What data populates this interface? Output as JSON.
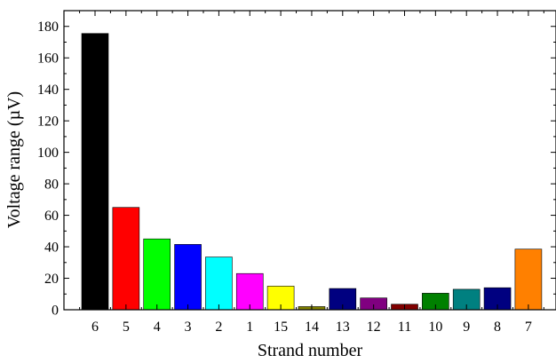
{
  "chart_data": {
    "type": "bar",
    "title": "",
    "xlabel": "Strand number",
    "ylabel": "Voltage range (µV)",
    "ylim": [
      0,
      190
    ],
    "yticks": [
      0,
      20,
      40,
      60,
      80,
      100,
      120,
      140,
      160,
      180
    ],
    "grid": false,
    "legend": "none",
    "categories": [
      "6",
      "5",
      "4",
      "3",
      "2",
      "1",
      "15",
      "14",
      "13",
      "12",
      "11",
      "10",
      "9",
      "8",
      "7"
    ],
    "values": [
      175.5,
      65,
      45,
      41.5,
      33.5,
      23,
      15,
      2,
      13.5,
      7.5,
      3.5,
      10.5,
      13,
      14,
      38.5
    ],
    "colors": [
      "#000000",
      "#ff0000",
      "#00ff00",
      "#0000ff",
      "#00ffff",
      "#ff00ff",
      "#ffff00",
      "#808000",
      "#000080",
      "#800080",
      "#800000",
      "#008000",
      "#008080",
      "#000080",
      "#ff8000"
    ]
  }
}
